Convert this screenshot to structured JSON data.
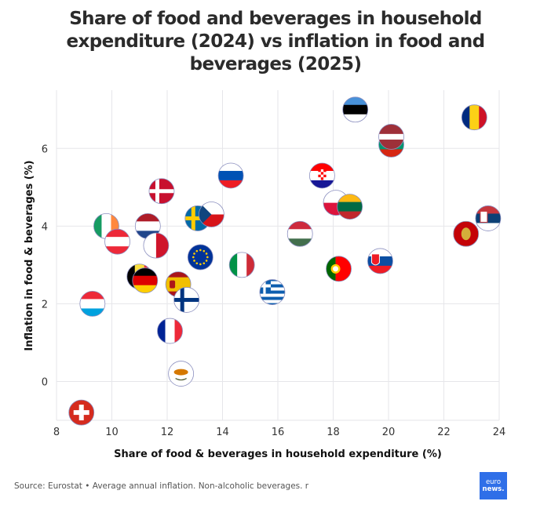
{
  "chart_data": {
    "type": "scatter",
    "title": "Share of food and beverages in household expenditure (2024) vs inflation in food and beverages (2025)",
    "xlabel": "Share of food & beverages in household expenditure (%)",
    "ylabel": "Inflation in food & beverages (%)",
    "xlim": [
      8,
      24
    ],
    "ylim": [
      -1,
      7.5
    ],
    "xticks": [
      8,
      10,
      12,
      14,
      16,
      18,
      20,
      22,
      24
    ],
    "yticks": [
      0,
      2,
      4,
      6
    ],
    "grid": true,
    "marker": "country-flag",
    "points": [
      {
        "country": "Switzerland",
        "code": "CH",
        "x": 8.9,
        "y": -0.8
      },
      {
        "country": "Luxembourg",
        "code": "LU",
        "x": 9.3,
        "y": 2.0
      },
      {
        "country": "Ireland",
        "code": "IE",
        "x": 9.8,
        "y": 4.0
      },
      {
        "country": "Austria",
        "code": "AT",
        "x": 10.2,
        "y": 3.6
      },
      {
        "country": "Belgium",
        "code": "BE",
        "x": 11.0,
        "y": 2.7
      },
      {
        "country": "Germany",
        "code": "DE",
        "x": 11.2,
        "y": 2.6
      },
      {
        "country": "Netherlands",
        "code": "NL",
        "x": 11.3,
        "y": 4.0
      },
      {
        "country": "Malta",
        "code": "MT",
        "x": 11.6,
        "y": 3.5
      },
      {
        "country": "Denmark",
        "code": "DK",
        "x": 11.8,
        "y": 4.9
      },
      {
        "country": "France",
        "code": "FR",
        "x": 12.1,
        "y": 1.3
      },
      {
        "country": "Spain",
        "code": "ES",
        "x": 12.4,
        "y": 2.5
      },
      {
        "country": "Cyprus",
        "code": "CY",
        "x": 12.5,
        "y": 0.2
      },
      {
        "country": "Finland",
        "code": "FI",
        "x": 12.7,
        "y": 2.1
      },
      {
        "country": "Sweden",
        "code": "SE",
        "x": 13.1,
        "y": 4.2
      },
      {
        "country": "European Union",
        "code": "EU",
        "x": 13.2,
        "y": 3.2
      },
      {
        "country": "Czechia",
        "code": "CZ",
        "x": 13.6,
        "y": 4.3
      },
      {
        "country": "Slovenia",
        "code": "SI",
        "x": 14.3,
        "y": 5.3
      },
      {
        "country": "Italy",
        "code": "IT",
        "x": 14.7,
        "y": 3.0
      },
      {
        "country": "Greece",
        "code": "GR",
        "x": 15.8,
        "y": 2.3
      },
      {
        "country": "Hungary",
        "code": "HU",
        "x": 16.8,
        "y": 3.8
      },
      {
        "country": "Croatia",
        "code": "HR",
        "x": 17.6,
        "y": 5.3
      },
      {
        "country": "Poland",
        "code": "PL",
        "x": 18.1,
        "y": 4.6
      },
      {
        "country": "Portugal",
        "code": "PT",
        "x": 18.2,
        "y": 2.9
      },
      {
        "country": "Lithuania",
        "code": "LT",
        "x": 18.6,
        "y": 4.5
      },
      {
        "country": "Estonia",
        "code": "EE",
        "x": 18.8,
        "y": 7.0
      },
      {
        "country": "Slovakia",
        "code": "SK",
        "x": 19.7,
        "y": 3.1
      },
      {
        "country": "Bulgaria",
        "code": "BG",
        "x": 20.1,
        "y": 6.1
      },
      {
        "country": "Latvia",
        "code": "LV",
        "x": 20.1,
        "y": 6.3
      },
      {
        "country": "Montenegro",
        "code": "ME",
        "x": 22.8,
        "y": 3.8
      },
      {
        "country": "Romania",
        "code": "RO",
        "x": 23.1,
        "y": 6.8
      },
      {
        "country": "Serbia",
        "code": "RS",
        "x": 23.6,
        "y": 4.2
      }
    ]
  },
  "footer": {
    "source": "Source: Eurostat • Average annual inflation. Non-alcoholic beverages. r",
    "logo_line1": "euro",
    "logo_line2": "news."
  },
  "colors": {
    "grid": "#e6e6ea",
    "logo_bg": "#2f6fe8"
  }
}
